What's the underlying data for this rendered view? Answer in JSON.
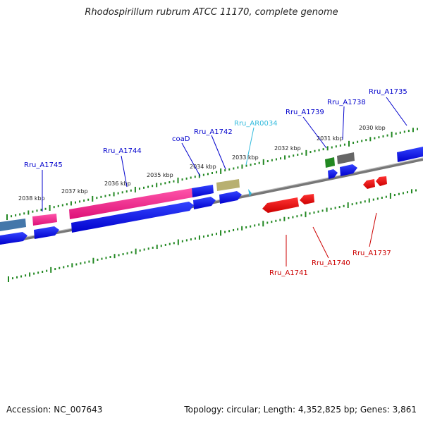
{
  "title": "Rhodospirillum rubrum ATCC 11170, complete genome",
  "footer": {
    "accession": "Accession: NC_007643",
    "summary": "Topology: circular; Length: 4,352,825 bp; Genes: 3,861"
  },
  "scale_labels": [
    "2038 kbp",
    "2037 kbp",
    "2036 kbp",
    "2035 kbp",
    "2034 kbp",
    "2033 kbp",
    "2032 kbp",
    "2031 kbp",
    "2030 kbp"
  ],
  "gene_labels": [
    {
      "text": "Rru_A1745",
      "color": "#0000cc"
    },
    {
      "text": "Rru_A1744",
      "color": "#0000cc"
    },
    {
      "text": "coaD",
      "color": "#0000cc"
    },
    {
      "text": "Rru_A1742",
      "color": "#0000cc"
    },
    {
      "text": "Rru_AR0034",
      "color": "#33bbdd"
    },
    {
      "text": "Rru_A1739",
      "color": "#0000cc"
    },
    {
      "text": "Rru_A1738",
      "color": "#0000cc"
    },
    {
      "text": "Rru_A1735",
      "color": "#0000cc"
    },
    {
      "text": "Rru_A1741",
      "color": "#cc0000"
    },
    {
      "text": "Rru_A1740",
      "color": "#cc0000"
    },
    {
      "text": "Rru_A1737",
      "color": "#cc0000"
    }
  ],
  "colors": {
    "tick": "#228822",
    "backbone": "#888888",
    "forward_cds": "#0000ee",
    "reverse_cds": "#ee0000",
    "pink_feature": "#ee2288",
    "olive_feature": "#b8b070",
    "green_feature": "#228822",
    "gray_feature": "#666666",
    "steel_feature": "#4477aa",
    "trna": "#33bbdd"
  }
}
